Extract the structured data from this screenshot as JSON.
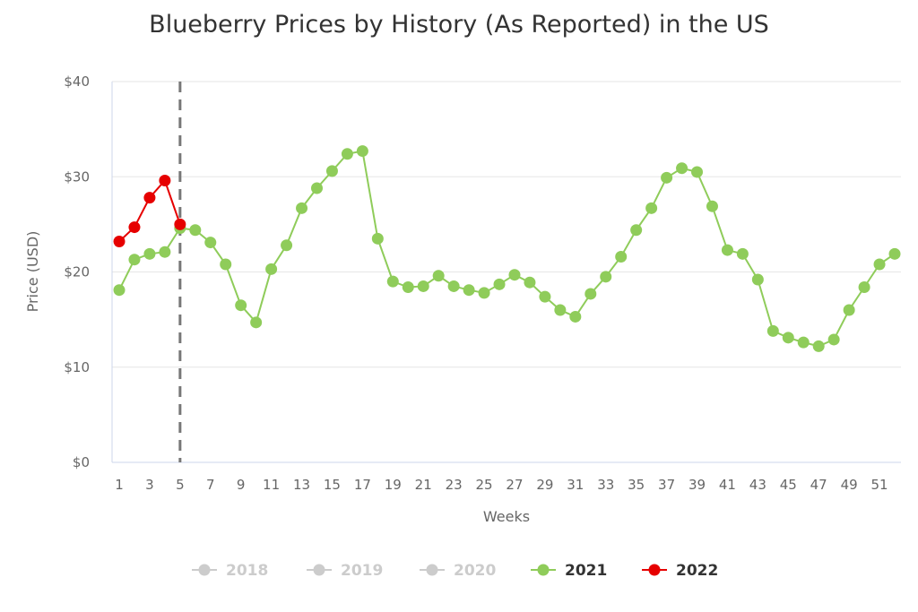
{
  "chart_data": {
    "type": "line",
    "title": "Blueberry Prices by History (As Reported) in the US",
    "xlabel": "Weeks",
    "ylabel": "Price (USD)",
    "ylim": [
      0,
      40
    ],
    "yticks": [
      "$0",
      "$10",
      "$20",
      "$30",
      "$40"
    ],
    "xticks": [
      1,
      3,
      5,
      7,
      9,
      11,
      13,
      15,
      17,
      19,
      21,
      23,
      25,
      27,
      29,
      31,
      33,
      35,
      37,
      39,
      41,
      43,
      45,
      47,
      49,
      51
    ],
    "grid": true,
    "legend_position": "bottom",
    "annotation": {
      "type": "dashed-vertical-line",
      "week": 5
    },
    "series": [
      {
        "name": "2018",
        "color": "#cccccc",
        "hidden": true,
        "values": []
      },
      {
        "name": "2019",
        "color": "#cccccc",
        "hidden": true,
        "values": []
      },
      {
        "name": "2020",
        "color": "#cccccc",
        "hidden": true,
        "values": []
      },
      {
        "name": "2021",
        "color": "#8fcc5a",
        "hidden": false,
        "values": [
          18.1,
          21.3,
          21.9,
          22.1,
          24.6,
          24.4,
          23.1,
          20.8,
          16.5,
          14.7,
          20.3,
          22.8,
          26.7,
          28.8,
          30.6,
          32.4,
          32.7,
          23.5,
          19.0,
          18.4,
          18.5,
          19.6,
          18.5,
          18.1,
          17.8,
          18.7,
          19.7,
          18.9,
          17.4,
          16.0,
          15.3,
          17.7,
          19.5,
          21.6,
          24.4,
          26.7,
          29.9,
          30.9,
          30.5,
          26.9,
          22.3,
          21.9,
          19.2,
          13.8,
          13.1,
          12.6,
          12.2,
          12.9,
          16.0,
          18.4,
          20.8,
          21.9
        ]
      },
      {
        "name": "2022",
        "color": "#e60000",
        "hidden": false,
        "values": [
          23.2,
          24.7,
          27.8,
          29.6,
          25.0
        ]
      }
    ]
  }
}
